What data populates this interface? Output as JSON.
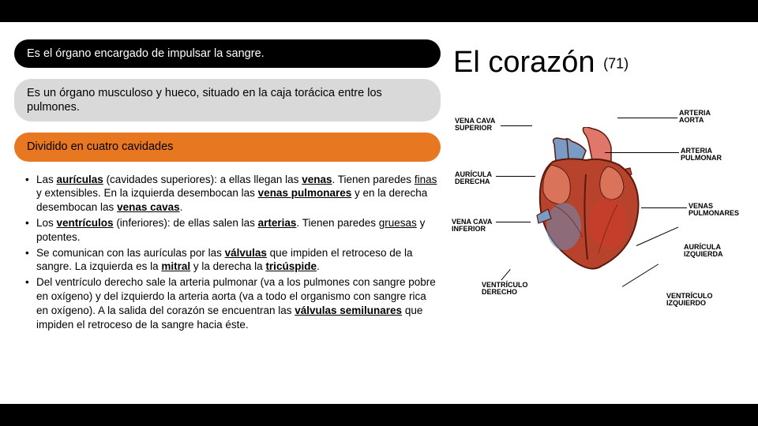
{
  "pills": {
    "p1": "Es el órgano encargado de impulsar la sangre.",
    "p2": "Es un órgano musculoso y hueco, situado en la caja torácica entre los pulmones.",
    "p3": "Dividido en cuatro cavidades"
  },
  "bullets": {
    "b1_html": "Las <u><b>aurículas</b></u> (cavidades superiores): a ellas llegan las <u><b>venas</b></u>. Tienen paredes <u>finas</u> y extensibles. En la izquierda desembocan las <u><b>venas pulmonares</b></u> y en la derecha desembocan las <u><b>venas cavas</b></u>.",
    "b2_html": "Los <u><b>ventrículos</b></u> (inferiores): de ellas salen las <u><b>arterias</b></u>. Tienen paredes <u>gruesas</u> y potentes.",
    "b3_html": "Se comunican con las aurículas por las <u><b>válvulas</b></u> que impiden el retroceso de la sangre. La izquierda es la <u><b>mitral</b></u> y la derecha la <u><b>tricúspide</b></u>.",
    "b4_html": "Del ventrículo derecho sale la arteria pulmonar (va a los pulmones con sangre pobre en oxígeno) y del izquierdo la arteria aorta (va a todo el organismo con sangre rica en oxígeno). A la salida del corazón se encuentran las <u><b>válvulas semilunares</b></u> que impiden el retroceso de la sangre hacia éste."
  },
  "title": {
    "main": "El corazón",
    "suffix": "(71)"
  },
  "diagram": {
    "labels": {
      "vcs": "VENA CAVA\nSUPERIOR",
      "ad": "AURÍCULA\nDERECHA",
      "vci": "VENA CAVA\nINFERIOR",
      "vd": "VENTRÍCULO\nDERECHO",
      "aa": "ARTERIA\nAORTA",
      "ap": "ARTERIA\nPULMONAR",
      "vp": "VENAS\nPULMONARES",
      "ai": "AURÍCULA\nIZQUIERDA",
      "vi": "VENTRÍCULO\nIZQUIERDO"
    },
    "heart_colors": {
      "outline": "#5a1a0f",
      "muscle": "#b8432d",
      "muscle_light": "#d9745b",
      "right_blue": "#6b8db8",
      "left_red": "#d13a2a",
      "vessel_blue": "#7a9cc4",
      "vessel_red": "#c94530",
      "aorta": "#e0776a"
    }
  },
  "colors": {
    "pill_black_bg": "#000000",
    "pill_black_fg": "#ffffff",
    "pill_gray_bg": "#d9d9d9",
    "pill_orange_bg": "#e87722",
    "page_bg": "#ffffff",
    "bar_bg": "#000000"
  }
}
